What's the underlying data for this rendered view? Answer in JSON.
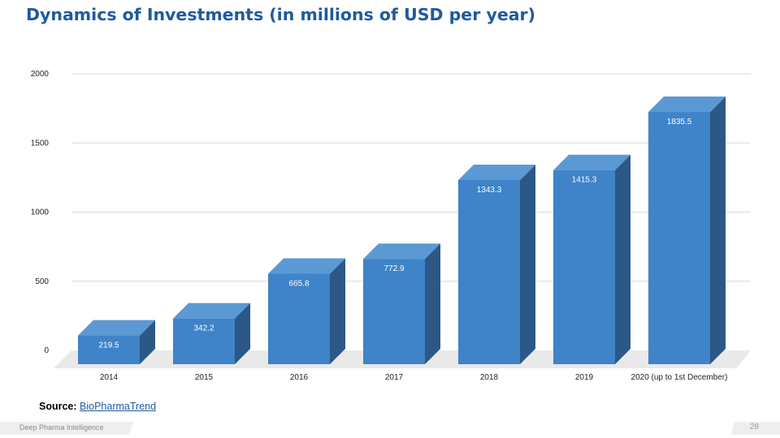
{
  "page": {
    "title": "Dynamics of Investments (in millions of USD per year)",
    "source_label": "Source:",
    "source_link": "BioPharmaTrend",
    "footer_left": "Deep Pharma Intelligence",
    "page_number": "28"
  },
  "colors": {
    "title": "#1f5a9e",
    "bar_front": "#3f83c8",
    "bar_top": "#5b99d4",
    "bar_side": "#2b5886",
    "floor": "#e9e9e9",
    "grid": "#d9d9d9",
    "label": "#ffffff"
  },
  "chart_data": {
    "type": "bar",
    "style": "3d",
    "categories": [
      "2014",
      "2015",
      "2016",
      "2017",
      "2018",
      "2019",
      "2020 (up to 1st December)"
    ],
    "values": [
      219.5,
      342.2,
      665.8,
      772.9,
      1343.3,
      1415.3,
      1835.5
    ],
    "data_labels": [
      "219.5",
      "342.2",
      "665.8",
      "772.9",
      "1343.3",
      "1415.3",
      "1835.5"
    ],
    "title": "Dynamics of Investments (in millions of USD per year)",
    "xlabel": "",
    "ylabel": "",
    "ylim": [
      0,
      2000
    ],
    "yticks": [
      0,
      500,
      1000,
      1500,
      2000
    ],
    "ytick_labels": [
      "0",
      "500",
      "1000",
      "1500",
      "2000"
    ],
    "grid": true,
    "legend": "none"
  }
}
